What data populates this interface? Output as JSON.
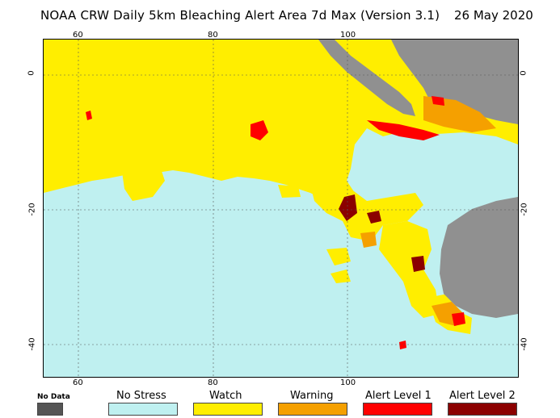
{
  "header": {
    "title": "NOAA CRW Daily 5km Bleaching Alert Area 7d Max (Version 3.1)",
    "date": "26 May 2020"
  },
  "axes": {
    "top_lon": [
      "60",
      "80",
      "100"
    ],
    "bottom_lon": [
      "60",
      "80",
      "100"
    ],
    "left_lat": [
      "0",
      "-20",
      "-40"
    ],
    "right_lat": [
      "0",
      "-20",
      "-40"
    ]
  },
  "legend": {
    "items": [
      {
        "label": "No Data",
        "color": "#555555"
      },
      {
        "label": "No Stress",
        "color": "#bff0f0"
      },
      {
        "label": "Watch",
        "color": "#ffee00"
      },
      {
        "label": "Warning",
        "color": "#f5a000"
      },
      {
        "label": "Alert Level 1",
        "color": "#ff0000"
      },
      {
        "label": "Alert Level 2",
        "color": "#8b0000"
      }
    ]
  },
  "colors": {
    "no_stress": "#bff0f0",
    "watch": "#ffee00",
    "warning": "#f5a000",
    "alert1": "#ff0000",
    "alert2": "#8b0000",
    "land": "#909090",
    "no_data": "#555555"
  }
}
